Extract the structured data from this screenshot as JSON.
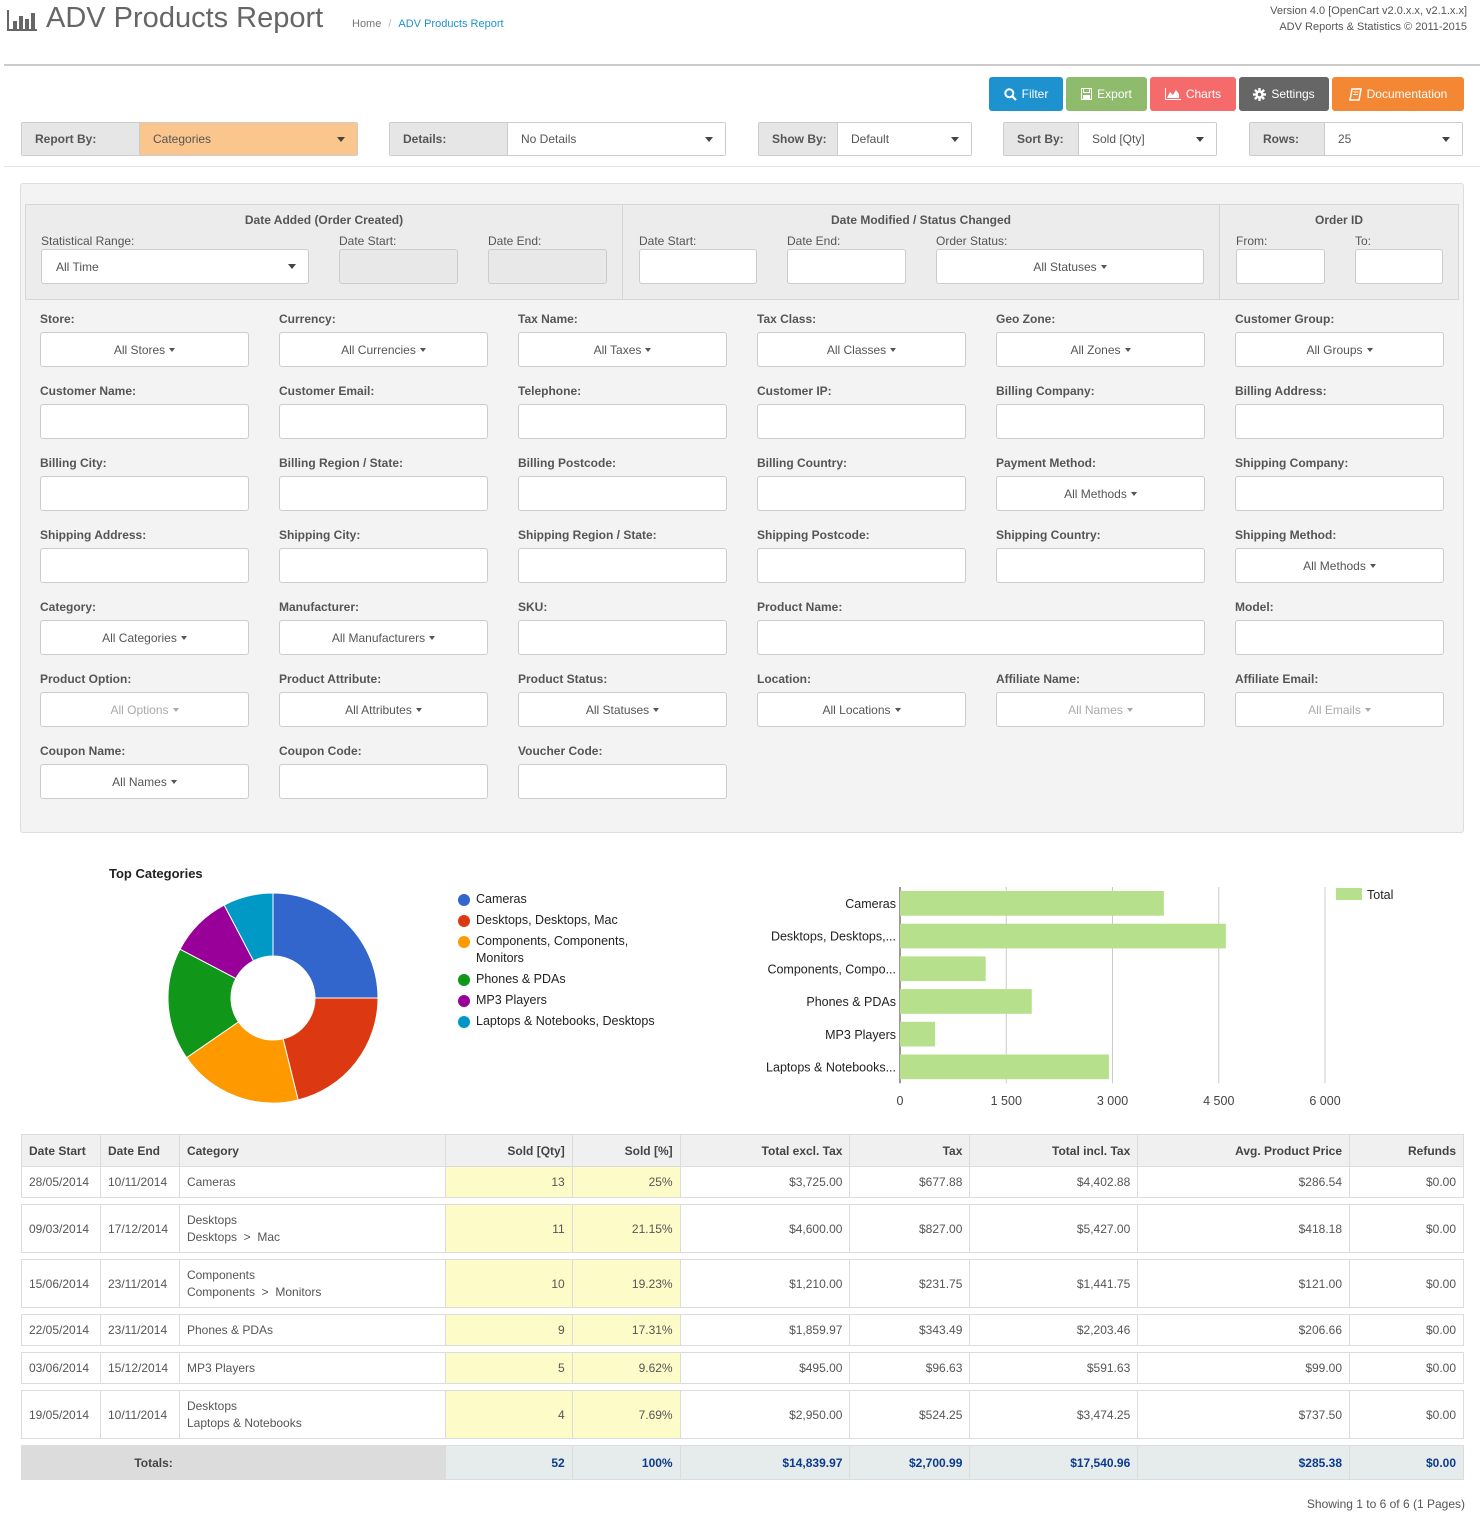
{
  "header": {
    "title": "ADV Products Report",
    "breadcrumb": [
      "Home",
      "ADV Products Report"
    ],
    "version_line": "Version 4.0 [OpenCart v2.0.x.x, v2.1.x.x]",
    "copyright_line": "ADV Reports & Statistics © 2011-2015"
  },
  "toolbar": {
    "filter": "Filter",
    "export": "Export",
    "charts": "Charts",
    "settings": "Settings",
    "documentation": "Documentation"
  },
  "selects": {
    "report_by": {
      "label": "Report By:",
      "value": "Categories"
    },
    "details": {
      "label": "Details:",
      "value": "No Details"
    },
    "show_by": {
      "label": "Show By:",
      "value": "Default"
    },
    "sort_by": {
      "label": "Sort By:",
      "value": "Sold [Qty]"
    },
    "rows": {
      "label": "Rows:",
      "value": "25"
    }
  },
  "filters": {
    "date_added": {
      "title": "Date Added (Order Created)",
      "range_label": "Statistical Range:",
      "range_value": "All Time",
      "start_label": "Date Start:",
      "end_label": "Date End:"
    },
    "date_modified": {
      "title": "Date Modified / Status Changed",
      "start_label": "Date Start:",
      "end_label": "Date End:",
      "status_label": "Order Status:",
      "status_value": "All Statuses"
    },
    "order_id": {
      "title": "Order ID",
      "from_label": "From:",
      "to_label": "To:"
    },
    "fields": {
      "store": {
        "label": "Store:",
        "value": "All Stores"
      },
      "currency": {
        "label": "Currency:",
        "value": "All Currencies"
      },
      "tax_name": {
        "label": "Tax Name:",
        "value": "All Taxes"
      },
      "tax_class": {
        "label": "Tax Class:",
        "value": "All Classes"
      },
      "geo_zone": {
        "label": "Geo Zone:",
        "value": "All Zones"
      },
      "customer_group": {
        "label": "Customer Group:",
        "value": "All Groups"
      },
      "customer_name": {
        "label": "Customer Name:"
      },
      "customer_email": {
        "label": "Customer Email:"
      },
      "telephone": {
        "label": "Telephone:"
      },
      "customer_ip": {
        "label": "Customer IP:"
      },
      "billing_company": {
        "label": "Billing Company:"
      },
      "billing_address": {
        "label": "Billing Address:"
      },
      "billing_city": {
        "label": "Billing City:"
      },
      "billing_region": {
        "label": "Billing Region / State:"
      },
      "billing_postcode": {
        "label": "Billing Postcode:"
      },
      "billing_country": {
        "label": "Billing Country:"
      },
      "payment_method": {
        "label": "Payment Method:",
        "value": "All Methods"
      },
      "shipping_company": {
        "label": "Shipping Company:"
      },
      "shipping_address": {
        "label": "Shipping Address:"
      },
      "shipping_city": {
        "label": "Shipping City:"
      },
      "shipping_region": {
        "label": "Shipping Region / State:"
      },
      "shipping_postcode": {
        "label": "Shipping Postcode:"
      },
      "shipping_country": {
        "label": "Shipping Country:"
      },
      "shipping_method": {
        "label": "Shipping Method:",
        "value": "All Methods"
      },
      "category": {
        "label": "Category:",
        "value": "All Categories"
      },
      "manufacturer": {
        "label": "Manufacturer:",
        "value": "All Manufacturers"
      },
      "sku": {
        "label": "SKU:"
      },
      "product_name": {
        "label": "Product Name:"
      },
      "model": {
        "label": "Model:"
      },
      "product_option": {
        "label": "Product Option:",
        "value": "All Options"
      },
      "product_attribute": {
        "label": "Product Attribute:",
        "value": "All Attributes"
      },
      "product_status": {
        "label": "Product Status:",
        "value": "All Statuses"
      },
      "location": {
        "label": "Location:",
        "value": "All Locations"
      },
      "affiliate_name": {
        "label": "Affiliate Name:",
        "value": "All Names"
      },
      "affiliate_email": {
        "label": "Affiliate Email:",
        "value": "All Emails"
      },
      "coupon_name": {
        "label": "Coupon Name:",
        "value": "All Names"
      },
      "coupon_code": {
        "label": "Coupon Code:"
      },
      "voucher_code": {
        "label": "Voucher Code:"
      }
    }
  },
  "chart_data": [
    {
      "type": "pie",
      "title": "Top Categories",
      "donut": true,
      "labels": [
        "Cameras",
        "Desktops, Desktops, Mac",
        "Components, Components, Monitors",
        "Phones & PDAs",
        "MP3 Players",
        "Laptops & Notebooks, Desktops"
      ],
      "values": [
        13,
        11,
        10,
        9,
        5,
        4
      ],
      "colors": [
        "#3366cc",
        "#dc3912",
        "#ff9900",
        "#109618",
        "#990099",
        "#0099c6"
      ],
      "legend": "right"
    },
    {
      "type": "bar",
      "orientation": "horizontal",
      "categories": [
        "Cameras",
        "Desktops, Desktops,...",
        "Components, Compo...",
        "Phones & PDAs",
        "MP3 Players",
        "Laptops & Notebooks..."
      ],
      "series": [
        {
          "name": "Total",
          "values": [
            3725.0,
            4600.0,
            1210.0,
            1859.97,
            495.0,
            2950.0
          ]
        }
      ],
      "xlim": [
        0,
        6000
      ],
      "xticks": [
        "0",
        "1 500",
        "3 000",
        "4 500",
        "6 000"
      ],
      "bar_color": "#b6e08b",
      "grid": true,
      "legend": "top-right"
    }
  ],
  "table": {
    "headers": [
      "Date Start",
      "Date End",
      "Category",
      "Sold [Qty]",
      "Sold [%]",
      "Total excl. Tax",
      "Tax",
      "Total incl. Tax",
      "Avg. Product Price",
      "Refunds"
    ],
    "rows": [
      {
        "start": "28/05/2014",
        "end": "10/11/2014",
        "cat1": "Cameras",
        "cat2": "",
        "qty": "13",
        "pct": "25%",
        "excl": "$3,725.00",
        "tax": "$677.88",
        "incl": "$4,402.88",
        "avg": "$286.54",
        "refunds": "$0.00"
      },
      {
        "start": "09/03/2014",
        "end": "17/12/2014",
        "cat1": "Desktops",
        "cat2": "Desktops  >  Mac",
        "qty": "11",
        "pct": "21.15%",
        "excl": "$4,600.00",
        "tax": "$827.00",
        "incl": "$5,427.00",
        "avg": "$418.18",
        "refunds": "$0.00"
      },
      {
        "start": "15/06/2014",
        "end": "23/11/2014",
        "cat1": "Components",
        "cat2": "Components  >  Monitors",
        "qty": "10",
        "pct": "19.23%",
        "excl": "$1,210.00",
        "tax": "$231.75",
        "incl": "$1,441.75",
        "avg": "$121.00",
        "refunds": "$0.00"
      },
      {
        "start": "22/05/2014",
        "end": "23/11/2014",
        "cat1": "Phones & PDAs",
        "cat2": "",
        "qty": "9",
        "pct": "17.31%",
        "excl": "$1,859.97",
        "tax": "$343.49",
        "incl": "$2,203.46",
        "avg": "$206.66",
        "refunds": "$0.00"
      },
      {
        "start": "03/06/2014",
        "end": "15/12/2014",
        "cat1": "MP3 Players",
        "cat2": "",
        "qty": "5",
        "pct": "9.62%",
        "excl": "$495.00",
        "tax": "$96.63",
        "incl": "$591.63",
        "avg": "$99.00",
        "refunds": "$0.00"
      },
      {
        "start": "19/05/2014",
        "end": "10/11/2014",
        "cat1": "Desktops",
        "cat2": "Laptops & Notebooks",
        "qty": "4",
        "pct": "7.69%",
        "excl": "$2,950.00",
        "tax": "$524.25",
        "incl": "$3,474.25",
        "avg": "$737.50",
        "refunds": "$0.00"
      }
    ],
    "totals": {
      "label": "Totals:",
      "qty": "52",
      "pct": "100%",
      "excl": "$14,839.97",
      "tax": "$2,700.99",
      "incl": "$17,540.96",
      "avg": "$285.38",
      "refunds": "$0.00"
    }
  },
  "pagination": "Showing 1 to 6 of 6 (1 Pages)",
  "colors": {
    "filter": "#1e91cf",
    "export": "#8fbb6c",
    "charts": "#f56b6b",
    "settings": "#666666",
    "documentation": "#f38733",
    "report_by_highlight": "#fbc68d"
  }
}
